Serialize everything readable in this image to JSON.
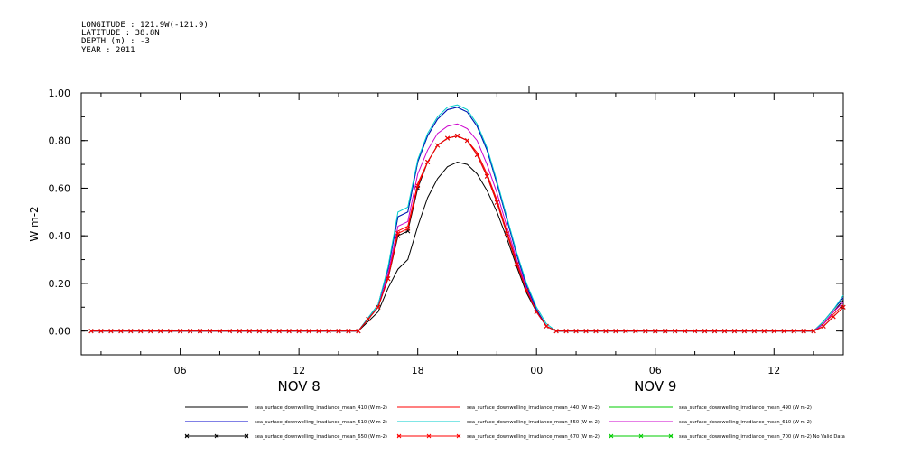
{
  "header": {
    "longitude": "LONGITUDE : 121.9W(-121.9)",
    "latitude": "LATITUDE : 38.8N",
    "depth": "DEPTH (m) : -3",
    "year": "YEAR : 2011"
  },
  "chart_data": {
    "type": "line",
    "ylabel": "W m-2",
    "ylim": [
      -0.1,
      1.0
    ],
    "yticks": [
      "0.00",
      "0.20",
      "0.40",
      "0.60",
      "0.80",
      "1.00"
    ],
    "ytick_values": [
      0.0,
      0.2,
      0.4,
      0.6,
      0.8,
      1.0
    ],
    "x_units": "hours from 2011-11-08 00:00",
    "xlim": [
      1.0,
      39.5
    ],
    "xticks": [
      "06",
      "12",
      "18",
      "00",
      "06",
      "12"
    ],
    "xtick_values": [
      6,
      12,
      18,
      24,
      30,
      36
    ],
    "date_labels": [
      {
        "text": "NOV  8",
        "at": 12
      },
      {
        "text": "NOV  9",
        "at": 30
      }
    ],
    "x_hours": [
      1.5,
      15.0,
      16.0,
      16.5,
      17.0,
      17.5,
      18.0,
      18.5,
      19.0,
      19.5,
      20.0,
      20.5,
      21.0,
      21.5,
      22.0,
      22.5,
      23.0,
      23.5,
      24.0,
      24.5,
      25.0,
      25.5,
      26.0,
      38.0,
      38.5,
      39.0,
      39.5
    ],
    "series": [
      {
        "name": "sea_surface_downwelling_irradiance_mean_410 (W m-2)",
        "color": "#000000",
        "marker": "none",
        "values": [
          0,
          0,
          0.08,
          0.18,
          0.26,
          0.3,
          0.44,
          0.56,
          0.64,
          0.69,
          0.71,
          0.7,
          0.66,
          0.59,
          0.5,
          0.39,
          0.27,
          0.16,
          0.08,
          0.02,
          0,
          0,
          0,
          0,
          0.03,
          0.08,
          0.13
        ]
      },
      {
        "name": "sea_surface_downwelling_irradiance_mean_440 (W m-2)",
        "color": "#ff0000",
        "marker": "none",
        "values": [
          0,
          0,
          0.1,
          0.23,
          0.42,
          0.44,
          0.62,
          0.71,
          0.78,
          0.81,
          0.82,
          0.8,
          0.75,
          0.66,
          0.55,
          0.42,
          0.29,
          0.18,
          0.08,
          0.02,
          0,
          0,
          0,
          0,
          0.03,
          0.07,
          0.11
        ]
      },
      {
        "name": "sea_surface_downwelling_irradiance_mean_490 (W m-2)",
        "color": "#00cc00",
        "marker": "none",
        "values": [
          0,
          0,
          0.11,
          0.26,
          0.48,
          0.5,
          0.71,
          0.82,
          0.89,
          0.93,
          0.94,
          0.92,
          0.86,
          0.76,
          0.62,
          0.47,
          0.32,
          0.19,
          0.09,
          0.02,
          0,
          0,
          0,
          0,
          0.04,
          0.09,
          0.14
        ]
      },
      {
        "name": "sea_surface_downwelling_irradiance_mean_510 (W m-2)",
        "color": "#0000cc",
        "marker": "none",
        "values": [
          0,
          0,
          0.11,
          0.26,
          0.48,
          0.5,
          0.71,
          0.82,
          0.89,
          0.93,
          0.94,
          0.92,
          0.86,
          0.76,
          0.62,
          0.47,
          0.32,
          0.19,
          0.09,
          0.02,
          0,
          0,
          0,
          0,
          0.04,
          0.09,
          0.14
        ]
      },
      {
        "name": "sea_surface_downwelling_irradiance_mean_550 (W m-2)",
        "color": "#00cccc",
        "marker": "none",
        "values": [
          0,
          0,
          0.11,
          0.27,
          0.5,
          0.52,
          0.72,
          0.83,
          0.9,
          0.94,
          0.95,
          0.93,
          0.87,
          0.77,
          0.63,
          0.48,
          0.33,
          0.2,
          0.1,
          0.03,
          0,
          0,
          0,
          0,
          0.04,
          0.09,
          0.15
        ]
      },
      {
        "name": "sea_surface_downwelling_irradiance_mean_610 (W m-2)",
        "color": "#cc00cc",
        "marker": "none",
        "values": [
          0,
          0,
          0.1,
          0.24,
          0.44,
          0.46,
          0.66,
          0.76,
          0.83,
          0.86,
          0.87,
          0.85,
          0.8,
          0.7,
          0.58,
          0.44,
          0.3,
          0.18,
          0.08,
          0.02,
          0,
          0,
          0,
          0,
          0.03,
          0.08,
          0.12
        ]
      },
      {
        "name": "sea_surface_downwelling_irradiance_mean_650 (W m-2)",
        "color": "#000000",
        "marker": "x",
        "values": [
          0,
          0,
          0.1,
          0.22,
          0.4,
          0.42,
          0.6,
          0.71,
          0.78,
          0.81,
          0.82,
          0.8,
          0.74,
          0.65,
          0.54,
          0.41,
          0.28,
          0.17,
          0.08,
          0.02,
          0,
          0,
          0,
          0,
          0.02,
          0.06,
          0.1
        ]
      },
      {
        "name": "sea_surface_downwelling_irradiance_mean_670 (W m-2)",
        "color": "#ff0000",
        "marker": "x",
        "values": [
          0,
          0,
          0.1,
          0.22,
          0.41,
          0.43,
          0.61,
          0.71,
          0.78,
          0.81,
          0.82,
          0.8,
          0.74,
          0.65,
          0.54,
          0.41,
          0.28,
          0.17,
          0.08,
          0.02,
          0,
          0,
          0,
          0,
          0.02,
          0.06,
          0.1
        ]
      }
    ],
    "legend": [
      {
        "label": "sea_surface_downwelling_irradiance_mean_410 (W m-2)",
        "color": "#000000",
        "marker": "none"
      },
      {
        "label": "sea_surface_downwelling_irradiance_mean_440 (W m-2)",
        "color": "#ff0000",
        "marker": "none"
      },
      {
        "label": "sea_surface_downwelling_irradiance_mean_490 (W m-2)",
        "color": "#00cc00",
        "marker": "none"
      },
      {
        "label": "sea_surface_downwelling_irradiance_mean_510 (W m-2)",
        "color": "#0000cc",
        "marker": "none"
      },
      {
        "label": "sea_surface_downwelling_irradiance_mean_550 (W m-2)",
        "color": "#00cccc",
        "marker": "none"
      },
      {
        "label": "sea_surface_downwelling_irradiance_mean_610 (W m-2)",
        "color": "#cc00cc",
        "marker": "none"
      },
      {
        "label": "sea_surface_downwelling_irradiance_mean_650 (W m-2)",
        "color": "#000000",
        "marker": "x"
      },
      {
        "label": "sea_surface_downwelling_irradiance_mean_670 (W m-2)",
        "color": "#ff0000",
        "marker": "x"
      },
      {
        "label": "sea_surface_downwelling_irradiance_mean_700 (W m-2) No Valid Data",
        "color": "#00cc00",
        "marker": "x"
      }
    ],
    "legend_position": "bottom",
    "grid": false
  }
}
